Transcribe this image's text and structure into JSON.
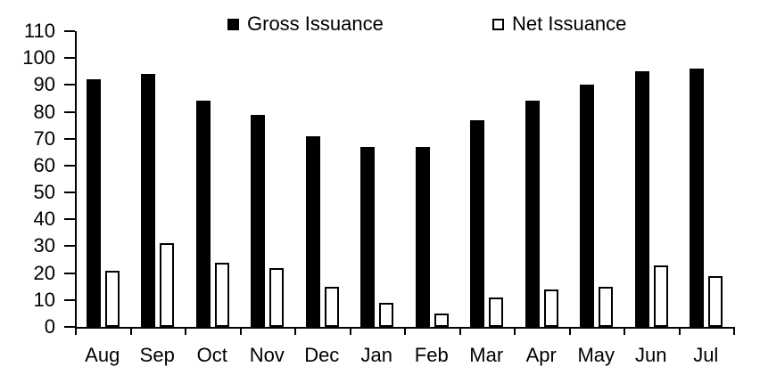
{
  "legend": [
    {
      "label": "Gross Issuance",
      "swatch": "filled-black-square",
      "color": "#000000"
    },
    {
      "label": "Net Issuance",
      "swatch": "outlined-white-square",
      "color": "#ffffff"
    }
  ],
  "chart_data": {
    "type": "bar",
    "title": "",
    "xlabel": "",
    "ylabel": "",
    "categories": [
      "Aug",
      "Sep",
      "Oct",
      "Nov",
      "Dec",
      "Jan",
      "Feb",
      "Mar",
      "Apr",
      "May",
      "Jun",
      "Jul"
    ],
    "series": [
      {
        "name": "Gross Issuance",
        "fill": "#000000",
        "outline": "#000000",
        "values": [
          92,
          94,
          84,
          79,
          71,
          67,
          67,
          77,
          84,
          90,
          95,
          96
        ]
      },
      {
        "name": "Net Issuance",
        "fill": "#ffffff",
        "outline": "#000000",
        "values": [
          21,
          31,
          24,
          22,
          15,
          9,
          5,
          11,
          14,
          15,
          23,
          19
        ]
      }
    ],
    "ylim": [
      0,
      110
    ],
    "yticks": [
      0,
      10,
      20,
      30,
      40,
      50,
      60,
      70,
      80,
      90,
      100,
      110
    ],
    "grid": false,
    "legend_position": "top"
  },
  "colors": {
    "background": "#ffffff",
    "text": "#000000",
    "axis": "#000000"
  }
}
